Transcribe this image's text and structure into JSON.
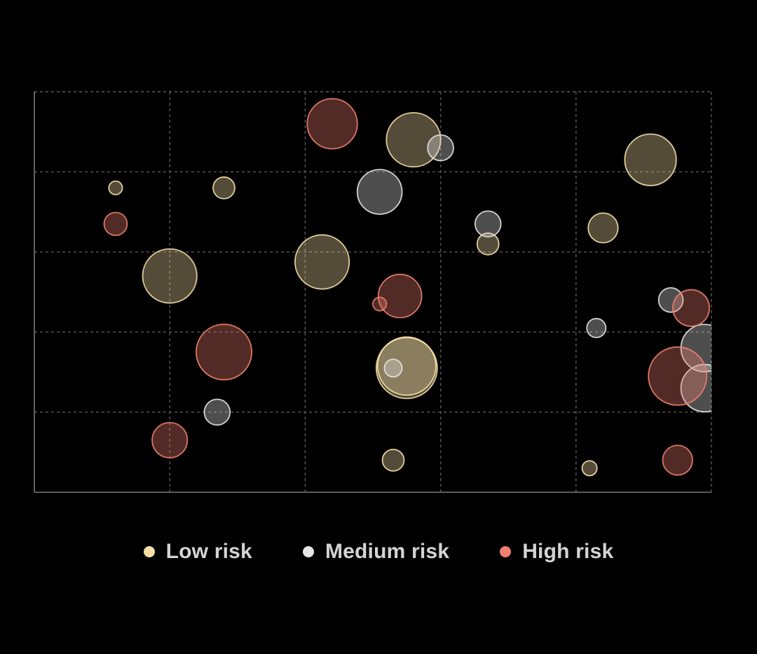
{
  "chart_data": {
    "type": "scatter",
    "variant": "bubble",
    "title": "",
    "xlabel": "",
    "ylabel": "",
    "xlim": [
      0,
      100
    ],
    "ylim": [
      0,
      100
    ],
    "grid": true,
    "legend_position": "bottom-center",
    "series": [
      {
        "name": "Low risk",
        "color": "#f5dfa6",
        "points": [
          {
            "x": 12,
            "y": 76,
            "r": 1.0
          },
          {
            "x": 28,
            "y": 76,
            "r": 1.6
          },
          {
            "x": 20,
            "y": 54,
            "r": 4.0
          },
          {
            "x": 42.5,
            "y": 57.5,
            "r": 4.0
          },
          {
            "x": 56,
            "y": 88,
            "r": 4.0
          },
          {
            "x": 67,
            "y": 62,
            "r": 1.6
          },
          {
            "x": 84,
            "y": 66,
            "r": 2.2
          },
          {
            "x": 91,
            "y": 83,
            "r": 3.8
          },
          {
            "x": 55,
            "y": 31,
            "r": 4.5
          },
          {
            "x": 55,
            "y": 31.5,
            "r": 4.3
          },
          {
            "x": 53,
            "y": 8,
            "r": 1.6
          },
          {
            "x": 82,
            "y": 6,
            "r": 1.1
          }
        ]
      },
      {
        "name": "Medium risk",
        "color": "#e6e6e6",
        "points": [
          {
            "x": 60,
            "y": 86,
            "r": 1.9
          },
          {
            "x": 51,
            "y": 75,
            "r": 3.3
          },
          {
            "x": 67,
            "y": 67,
            "r": 1.9
          },
          {
            "x": 94,
            "y": 48,
            "r": 1.8
          },
          {
            "x": 83,
            "y": 41,
            "r": 1.4
          },
          {
            "x": 99,
            "y": 36,
            "r": 3.5
          },
          {
            "x": 99,
            "y": 26,
            "r": 3.5
          },
          {
            "x": 53,
            "y": 31,
            "r": 1.3
          },
          {
            "x": 27,
            "y": 20,
            "r": 1.9
          }
        ]
      },
      {
        "name": "High risk",
        "color": "#f07f6e",
        "points": [
          {
            "x": 44,
            "y": 92,
            "r": 3.7
          },
          {
            "x": 12,
            "y": 67,
            "r": 1.7
          },
          {
            "x": 54,
            "y": 49,
            "r": 3.2
          },
          {
            "x": 51,
            "y": 47,
            "r": 1.0
          },
          {
            "x": 28,
            "y": 35,
            "r": 4.1
          },
          {
            "x": 97,
            "y": 46,
            "r": 2.7
          },
          {
            "x": 95,
            "y": 29,
            "r": 4.3
          },
          {
            "x": 20,
            "y": 13,
            "r": 2.6
          },
          {
            "x": 95,
            "y": 8,
            "r": 2.2
          }
        ]
      }
    ]
  },
  "legend": {
    "items": [
      {
        "label": "Low risk",
        "color": "#f5dfa6"
      },
      {
        "label": "Medium risk",
        "color": "#e6e6e6"
      },
      {
        "label": "High risk",
        "color": "#f07f6e"
      }
    ]
  }
}
